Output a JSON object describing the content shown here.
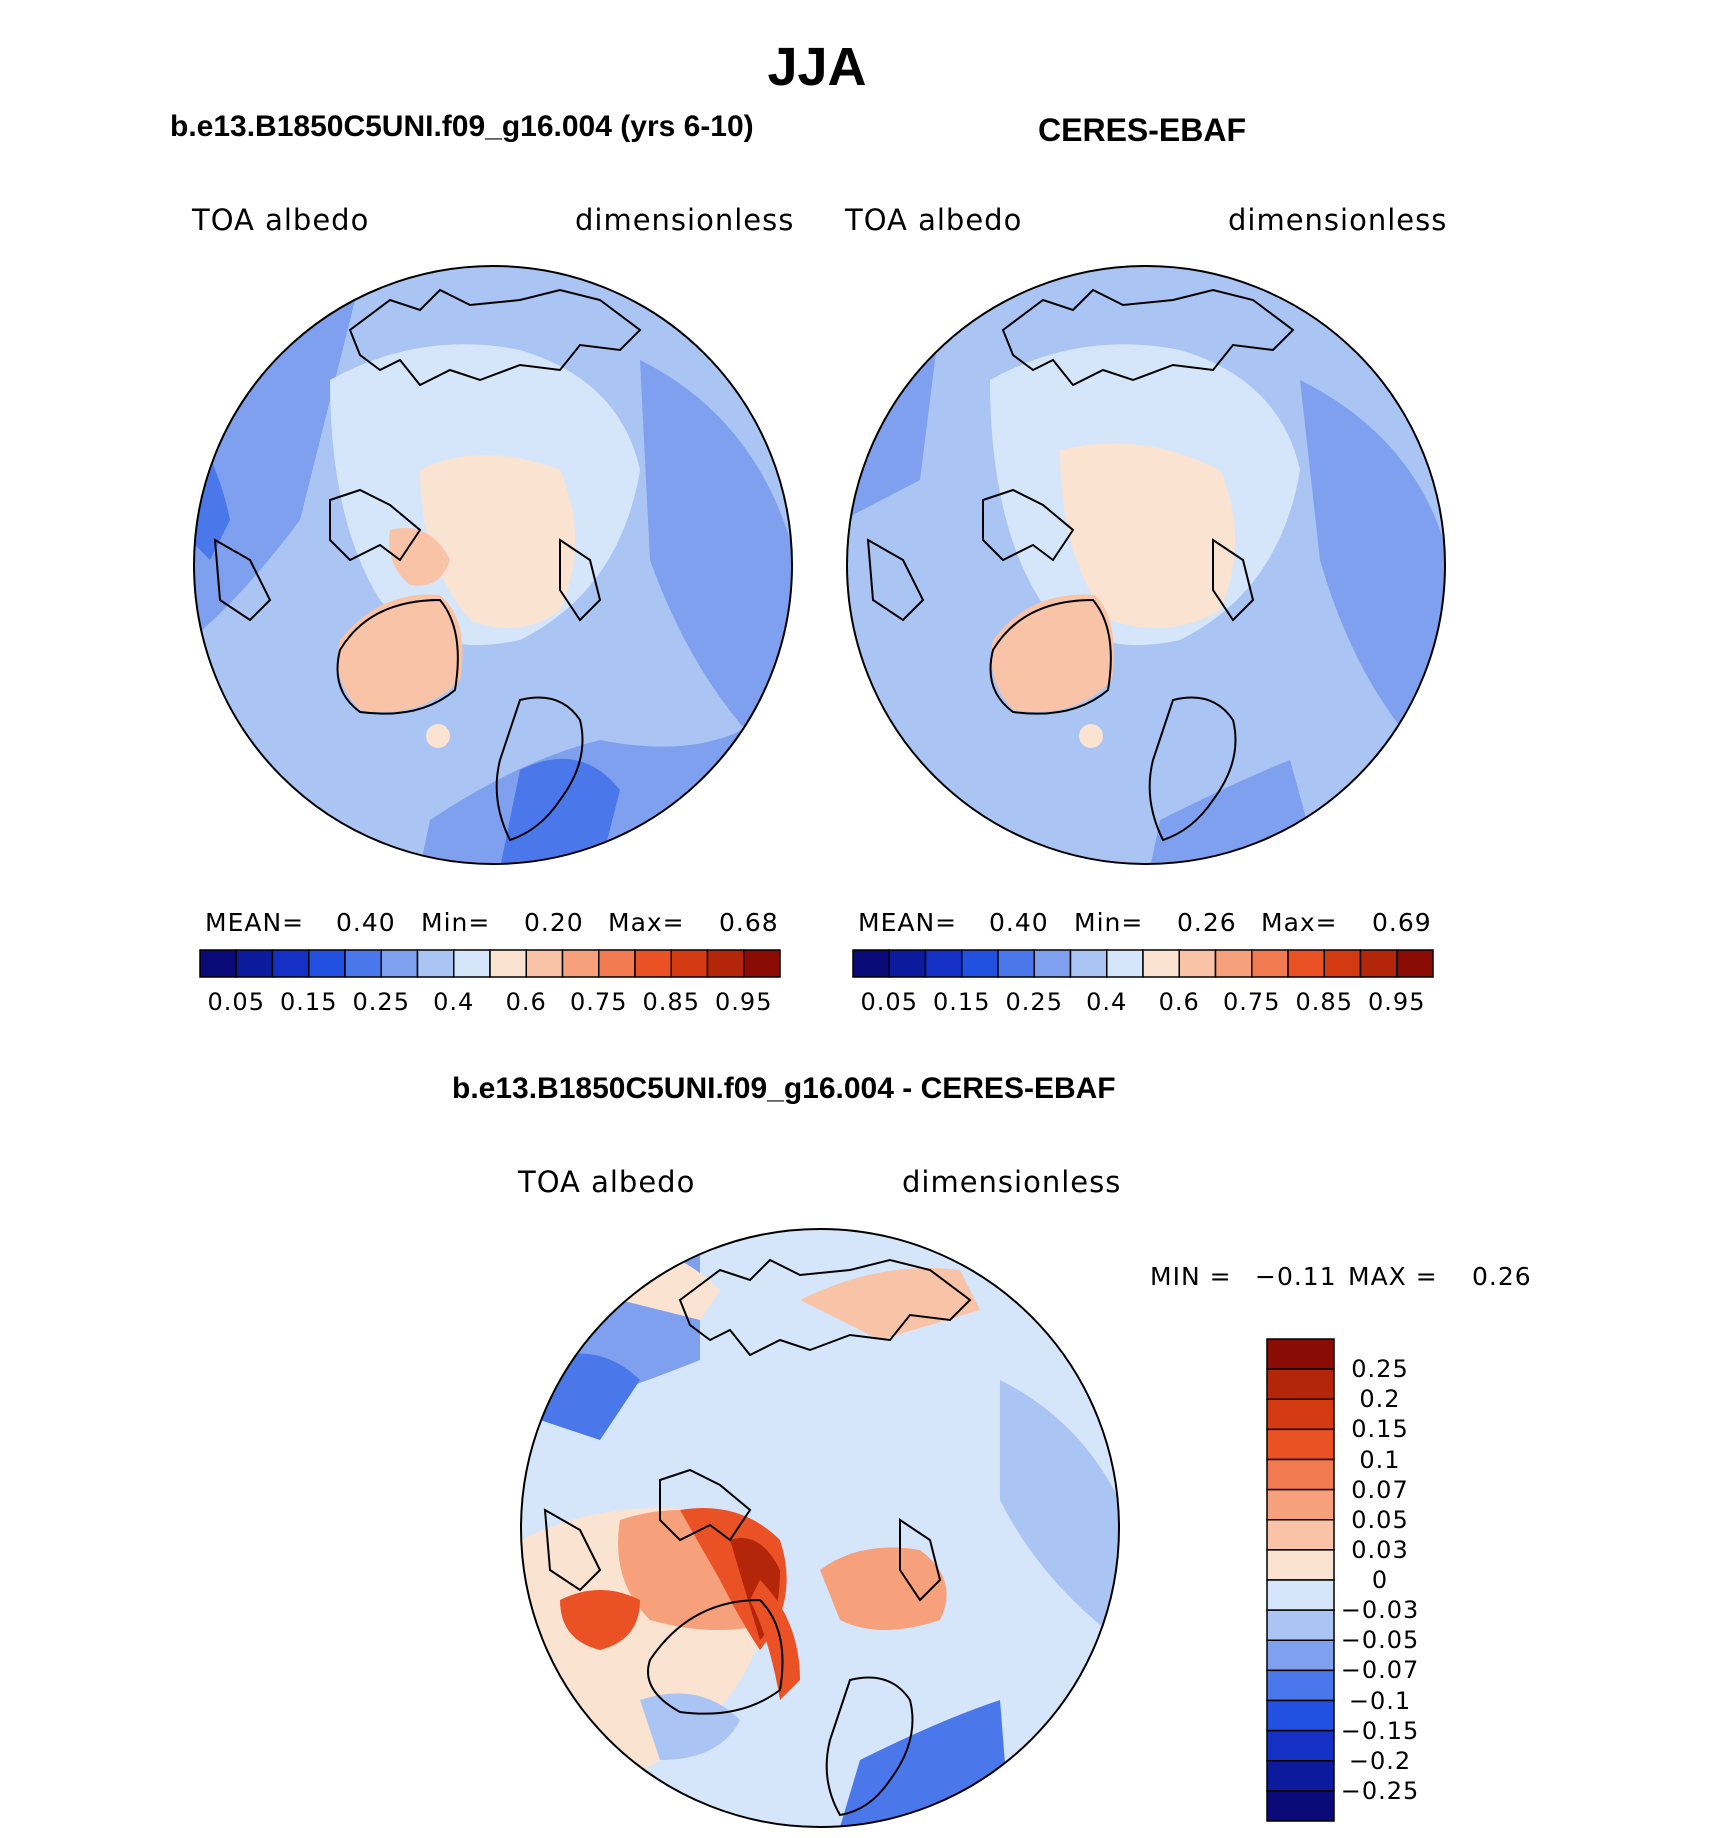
{
  "page_title": "JJA",
  "panels": [
    {
      "id": "model",
      "title": "b.e13.B1850C5UNI.f09_g16.004 (yrs 6-10)",
      "variable": "TOA albedo",
      "units": "dimensionless",
      "stats": {
        "mean_label": "MEAN=",
        "mean": "0.40",
        "min_label": "Min=",
        "min": "0.20",
        "max_label": "Max=",
        "max": "0.68"
      }
    },
    {
      "id": "obs",
      "title": "CERES-EBAF",
      "variable": "TOA albedo",
      "units": "dimensionless",
      "stats": {
        "mean_label": "MEAN=",
        "mean": "0.40",
        "min_label": "Min=",
        "min": "0.26",
        "max_label": "Max=",
        "max": "0.69"
      }
    },
    {
      "id": "diff",
      "title": "b.e13.B1850C5UNI.f09_g16.004 - CERES-EBAF",
      "variable": "TOA albedo",
      "units": "dimensionless",
      "stats": {
        "min_label": "MIN =",
        "min": "−0.11",
        "max_label": "MAX =",
        "max": "0.26"
      }
    }
  ],
  "colorbar_abs": {
    "colors": [
      "#0a0a78",
      "#0c1a9e",
      "#1530c4",
      "#2250e0",
      "#4a78ea",
      "#7ea0ee",
      "#aac4f4",
      "#d6e6fa",
      "#fbe3d2",
      "#f9c3a7",
      "#f6a07c",
      "#f27a50",
      "#ea5226",
      "#d43a12",
      "#b4260a",
      "#8a0c04"
    ],
    "tick_labels": [
      "0.05",
      "0.15",
      "0.25",
      "0.4",
      "0.6",
      "0.75",
      "0.85",
      "0.95"
    ]
  },
  "colorbar_diff": {
    "colors": [
      "#0a0a78",
      "#0c1a9e",
      "#1530c4",
      "#2250e0",
      "#4a78ea",
      "#7ea0ee",
      "#aac4f4",
      "#d6e6fa",
      "#fbe3d2",
      "#f9c3a7",
      "#f6a07c",
      "#f27a50",
      "#ea5226",
      "#d43a12",
      "#b4260a",
      "#8a0c04"
    ],
    "tick_labels": [
      "0.25",
      "0.2",
      "0.15",
      "0.1",
      "0.07",
      "0.05",
      "0.03",
      "0",
      "−0.03",
      "−0.05",
      "−0.07",
      "−0.1",
      "−0.15",
      "−0.2",
      "−0.25"
    ]
  }
}
